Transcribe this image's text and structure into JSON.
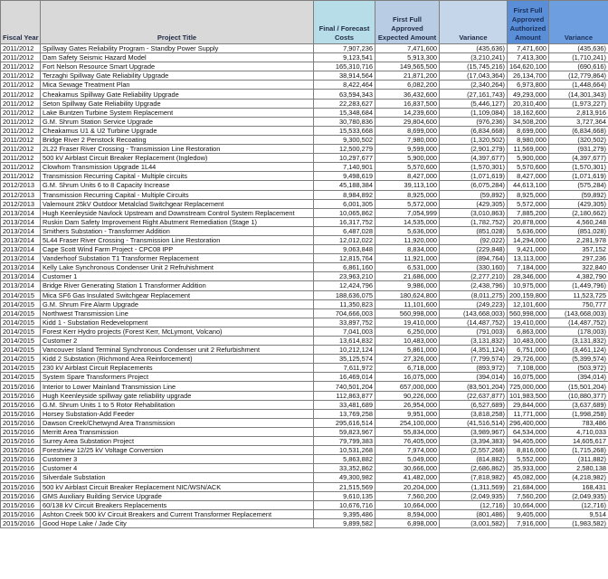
{
  "headers": {
    "fiscal_year": "Fiscal Year",
    "project_title": "Project Title",
    "final_forecast": "Final / Forecast Costs",
    "expected": "First Full Approved Expected Amount",
    "variance1": "Variance",
    "authorized": "First Full Approved Authorized Amount",
    "variance2": "Variance"
  },
  "colors": {
    "header_gray": "#d9d9d9",
    "final_header": "#b7dde8",
    "expected_header": "#b8cce4",
    "variance_header": "#c5d5ea",
    "authorized_header": "#5a8ed6",
    "variance2_header": "#6d9fe0"
  },
  "rows": [
    [
      "2011/2012",
      "Spillway Gates Reliability Program - Standby Power Supply",
      "7,907,236",
      "7,471,600",
      "(435,636)",
      "7,471,600",
      "(435,636)"
    ],
    [
      "2011/2012",
      "Dam Safety Seismic Hazard Model",
      "9,123,541",
      "5,913,300",
      "(3,210,241)",
      "7,413,300",
      "(1,710,241)"
    ],
    [
      "2011/2012",
      "Fort Nelson Resource Smart Upgrade",
      "165,310,716",
      "149,565,500",
      "(15,745,216)",
      "164,620,100",
      "(690,616)"
    ],
    [
      "2011/2012",
      "Terzaghi Spillway Gate Reliability Upgrade",
      "38,914,564",
      "21,871,200",
      "(17,043,364)",
      "26,134,700",
      "(12,779,864)"
    ],
    [
      "2011/2012",
      "Mica Sewage Treatment Plan",
      "8,422,464",
      "6,082,200",
      "(2,340,264)",
      "6,973,800",
      "(1,448,664)"
    ],
    [
      "2011/2012",
      "Cheakamus Spillway Gate Reliability Upgrade",
      "63,594,343",
      "36,432,600",
      "(27,161,743)",
      "49,293,000",
      "(14,301,343)"
    ],
    [
      "2011/2012",
      "Seton Spillway Gate Reliability Upgrade",
      "22,283,627",
      "16,837,500",
      "(5,446,127)",
      "20,310,400",
      "(1,973,227)"
    ],
    [
      "2011/2012",
      "Lake Buntzen Turbine System Replacement",
      "15,348,684",
      "14,239,600",
      "(1,109,084)",
      "18,162,600",
      "2,813,916"
    ],
    [
      "2011/2012",
      "G.M. Shrum Station Service Upgrade",
      "30,780,836",
      "29,804,600",
      "(976,236)",
      "34,508,200",
      "3,727,364"
    ],
    [
      "2011/2012",
      "Cheakamus U1 & U2 Turbine Upgrade",
      "15,533,668",
      "8,699,000",
      "(6,834,668)",
      "8,699,000",
      "(6,834,668)"
    ],
    [
      "2011/2012",
      "Bridge River 2 Penstock Recoating",
      "9,300,502",
      "7,980,000",
      "(1,320,502)",
      "8,980,000",
      "(320,502)"
    ],
    [
      "2011/2012",
      "2L22 Fraser River Crossing - Transmission Line Restoration",
      "12,500,279",
      "9,599,000",
      "(2,901,279)",
      "11,569,000",
      "(931,279)"
    ],
    [
      "2011/2012",
      "500 kV Airblast Circuit Breaker Replacement (Ingledow)",
      "10,297,677",
      "5,900,000",
      "(4,397,677)",
      "5,900,000",
      "(4,397,677)"
    ],
    [
      "2011/2012",
      "Clowhom Transmission Upgrade 1L44",
      "7,140,901",
      "5,570,600",
      "(1,570,301)",
      "5,570,600",
      "(1,570,301)"
    ],
    [
      "2011/2012",
      "Transmission Recurring Capital - Multiple circuits",
      "9,498,619",
      "8,427,000",
      "(1,071,619)",
      "8,427,000",
      "(1,071,619)"
    ],
    [
      "2012/2013",
      "G.M. Shrum Units 6 to 8 Capacity Increase",
      "45,188,384",
      "39,113,100",
      "(6,075,284)",
      "44,613,100",
      "(575,284)"
    ],
    [
      "2012/2013",
      "Transmission Recurring Capital - Multiple Circuits",
      "8,984,892",
      "8,925,000",
      "(59,892)",
      "8,925,000",
      "(59,892)"
    ],
    [
      "2012/2013",
      "Valemount 25kV Outdoor Metalclad Switchgear Replacement",
      "6,001,305",
      "5,572,000",
      "(429,305)",
      "5,572,000",
      "(429,305)"
    ],
    [
      "2013/2014",
      "Hugh Keenleyside Navlock Upstream and Downstream Control System Replacement",
      "10,065,862",
      "7,054,999",
      "(3,010,863)",
      "7,885,200",
      "(2,180,662)"
    ],
    [
      "2013/2014",
      "Ruskin Dam Safety Improvement Right Abutment Remediation (Stage 1)",
      "16,317,752",
      "14,535,000",
      "(1,782,752)",
      "20,878,000",
      "4,560,248"
    ],
    [
      "2013/2014",
      "Smithers Substation - Transformer Addition",
      "6,487,028",
      "5,636,000",
      "(851,028)",
      "5,636,000",
      "(851,028)"
    ],
    [
      "2013/2014",
      "5L44 Fraser River Crossing - Transmission Line Restoration",
      "12,012,022",
      "11,920,000",
      "(92,022)",
      "14,294,000",
      "2,281,978"
    ],
    [
      "2013/2014",
      "Cape Scott Wind Farm Project - CPC08 IPP",
      "9,063,848",
      "8,834,000",
      "(229,848)",
      "9,421,000",
      "357,152"
    ],
    [
      "2013/2014",
      "Vanderhoof Substation T1 Transformer Replacement",
      "12,815,764",
      "11,921,000",
      "(894,764)",
      "13,113,000",
      "297,236"
    ],
    [
      "2013/2014",
      "Kelly Lake Synchronous Condenser Unit 2 Refruhishment",
      "6,861,160",
      "6,531,000",
      "(330,160)",
      "7,184,000",
      "322,840"
    ],
    [
      "2013/2014",
      "Customer 1",
      "23,963,210",
      "21,686,000",
      "(2,277,210)",
      "28,346,000",
      "4,382,790"
    ],
    [
      "2013/2014",
      "Bridge River Generating Station 1 Transformer Addition",
      "12,424,796",
      "9,986,000",
      "(2,438,796)",
      "10,975,000",
      "(1,449,796)"
    ],
    [
      "2014/2015",
      "Mica SF6 Gas Insulated Switchgear Replacement",
      "188,636,075",
      "180,624,800",
      "(8,011,275)",
      "200,159,800",
      "11,523,725"
    ],
    [
      "2014/2015",
      "G.M. Shrum Fire Alarm Upgrade",
      "11,350,823",
      "11,101,600",
      "(249,223)",
      "12,101,600",
      "750,777"
    ],
    [
      "2014/2015",
      "Northwest Transmission Line",
      "704,666,003",
      "560,998,000",
      "(143,668,003)",
      "560,998,000",
      "(143,668,003)"
    ],
    [
      "2014/2015",
      "Kidd 1 - Substation Redevelopment",
      "33,897,752",
      "19,410,000",
      "(14,487,752)",
      "19,410,000",
      "(14,487,752)"
    ],
    [
      "2014/2015",
      "Forest Kerr Hydro projects (Forest Kerr, McLymont, Volcano)",
      "7,041,003",
      "6,250,000",
      "(791,003)",
      "6,863,000",
      "(178,003)"
    ],
    [
      "2014/2015",
      "Customer 2",
      "13,614,832",
      "10,483,000",
      "(3,131,832)",
      "10,483,000",
      "(3,131,832)"
    ],
    [
      "2014/2015",
      "Vancouver Island Terminal Synchronous Condenser unit 2 Refurbishment",
      "10,212,124",
      "5,861,000",
      "(4,351,124)",
      "6,751,000",
      "(3,461,124)"
    ],
    [
      "2014/2015",
      "Kidd 2 Substation (Richmond Area Reinforcement)",
      "35,125,574",
      "27,326,000",
      "(7,799,574)",
      "29,726,000",
      "(5,399,574)"
    ],
    [
      "2014/2015",
      "230 kV Airblast Circuit Replacements",
      "7,611,972",
      "6,718,000",
      "(893,972)",
      "7,108,000",
      "(503,972)"
    ],
    [
      "2014/2015",
      "System Spare Transformers Project",
      "16,469,014",
      "16,075,000",
      "(394,014)",
      "16,075,000",
      "(394,014)"
    ],
    [
      "2015/2016",
      "Interior to Lower Mainland Transmission Line",
      "740,501,204",
      "657,000,000",
      "(83,501,204)",
      "725,000,000",
      "(15,501,204)"
    ],
    [
      "2015/2016",
      "Hugh Keenleyside spillway gate reliability upgrade",
      "112,863,877",
      "90,226,000",
      "(22,637,877)",
      "101,983,500",
      "(10,880,377)"
    ],
    [
      "2015/2016",
      "G.M. Shrum Units 1 to 5 Rotor Rehabilitation",
      "33,481,689",
      "26,954,000",
      "(6,527,689)",
      "29,844,000",
      "(3,637,689)"
    ],
    [
      "2015/2016",
      "Horsey Substation-Add Feeder",
      "13,769,258",
      "9,951,000",
      "(3,818,258)",
      "11,771,000",
      "(1,998,258)"
    ],
    [
      "2015/2016",
      "Dawson Creek/Chetwynd Area Transmission",
      "295,616,514",
      "254,100,000",
      "(41,516,514)",
      "296,400,000",
      "783,486"
    ],
    [
      "2015/2016",
      "Merritt Area Transmission",
      "59,823,967",
      "55,834,000",
      "(3,989,967)",
      "64,534,000",
      "4,710,033"
    ],
    [
      "2015/2016",
      "Surrey Area Substation Project",
      "79,799,383",
      "76,405,000",
      "(3,394,383)",
      "94,405,000",
      "14,605,617"
    ],
    [
      "2015/2016",
      "Forestview 12/25 kV Voltage Conversion",
      "10,531,268",
      "7,974,000",
      "(2,557,268)",
      "8,816,000",
      "(1,715,268)"
    ],
    [
      "2015/2016",
      "Customer 3",
      "5,863,882",
      "5,049,000",
      "(814,882)",
      "5,552,000",
      "(311,882)"
    ],
    [
      "2015/2016",
      "Customer 4",
      "33,352,862",
      "30,666,000",
      "(2,686,862)",
      "35,933,000",
      "2,580,138"
    ],
    [
      "2015/2016",
      "Silverdale Substation",
      "49,300,982",
      "41,482,000",
      "(7,818,982)",
      "45,082,000",
      "(4,218,982)"
    ],
    [
      "2015/2016",
      "500 kV Airblast Circuit Breaker Replacement NIC/WSN/ACK",
      "21,515,569",
      "20,204,000",
      "(1,311,569)",
      "21,684,000",
      "168,431"
    ],
    [
      "2015/2016",
      "GMS Auxiliary Building Service Upgrade",
      "9,610,135",
      "7,560,200",
      "(2,049,935)",
      "7,560,200",
      "(2,049,935)"
    ],
    [
      "2015/2016",
      "60/138 kV Circuit Breakers Replacements",
      "10,676,716",
      "10,664,000",
      "(12,716)",
      "10,664,000",
      "(12,716)"
    ],
    [
      "2015/2016",
      "Ashton Creek 500 kV Circuit Breakers and Current Transformer Replacement",
      "9,395,486",
      "8,594,000",
      "(801,486)",
      "9,405,000",
      "9,514"
    ],
    [
      "2015/2016",
      "Good Hope Lake / Jade City",
      "9,899,582",
      "6,898,000",
      "(3,001,582)",
      "7,916,000",
      "(1,983,582)"
    ]
  ]
}
